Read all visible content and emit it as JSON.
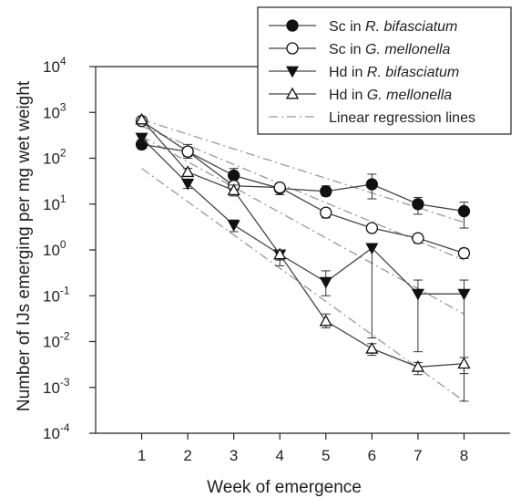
{
  "chart_data": {
    "type": "line",
    "xlabel": "Week of emergence",
    "ylabel": "Number of IJs emerging per mg wet weight",
    "y_scale": "log",
    "ylim": [
      0.0001,
      10000
    ],
    "xlim": [
      0,
      9
    ],
    "x_ticks": [
      1,
      2,
      3,
      4,
      5,
      6,
      7,
      8
    ],
    "y_ticks": [
      {
        "exp": -4,
        "label_base": "10",
        "label_exp": "-4"
      },
      {
        "exp": -3,
        "label_base": "10",
        "label_exp": "-3"
      },
      {
        "exp": -2,
        "label_base": "10",
        "label_exp": "-2"
      },
      {
        "exp": -1,
        "label_base": "10",
        "label_exp": "-1"
      },
      {
        "exp": 0,
        "label_base": "10",
        "label_exp": "0"
      },
      {
        "exp": 1,
        "label_base": "10",
        "label_exp": "1"
      },
      {
        "exp": 2,
        "label_base": "10",
        "label_exp": "2"
      },
      {
        "exp": 3,
        "label_base": "10",
        "label_exp": "3"
      },
      {
        "exp": 4,
        "label_base": "10",
        "label_exp": "4"
      }
    ],
    "x": [
      1,
      2,
      3,
      4,
      5,
      6,
      7,
      8
    ],
    "series": [
      {
        "name_prefix": "Sc in ",
        "name_species": "R. bifasciatum",
        "marker": "circle-filled",
        "values": [
          200,
          140,
          42,
          22,
          19,
          27,
          10,
          7
        ],
        "err_low": [
          160,
          100,
          30,
          16,
          15,
          13,
          6,
          3
        ],
        "err_high": [
          250,
          200,
          60,
          28,
          25,
          45,
          14,
          11
        ],
        "regression": [
          [
            1,
            700
          ],
          [
            8,
            4
          ]
        ]
      },
      {
        "name_prefix": "Sc in ",
        "name_species": "G. mellonella",
        "marker": "circle-open",
        "values": [
          650,
          140,
          25,
          23,
          6.5,
          3,
          1.8,
          0.85
        ],
        "err_low": [
          550,
          110,
          20,
          18,
          5,
          2.5,
          1.4,
          0.65
        ],
        "err_high": [
          750,
          175,
          30,
          28,
          8,
          3.6,
          2.2,
          1.05
        ],
        "regression": [
          [
            1,
            500
          ],
          [
            8,
            0.6
          ]
        ]
      },
      {
        "name_prefix": "Hd in ",
        "name_species": "R. bifasciatum",
        "marker": "triangle-down-filled",
        "values": [
          280,
          28,
          3.5,
          0.8,
          0.2,
          1.1,
          0.11,
          0.11
        ],
        "err_low": [
          230,
          22,
          2.5,
          0.45,
          0.1,
          0.012,
          0.006,
          0.0005
        ],
        "err_high": [
          330,
          34,
          4.5,
          1.0,
          0.35,
          1.3,
          0.22,
          0.22
        ],
        "regression": [
          [
            1,
            300
          ],
          [
            8,
            0.04
          ]
        ]
      },
      {
        "name_prefix": "Hd in ",
        "name_species": "G. mellonella",
        "marker": "triangle-up-open",
        "values": [
          700,
          50,
          20,
          0.8,
          0.028,
          0.007,
          0.0028,
          0.0033
        ],
        "err_low": [
          600,
          40,
          15,
          0.6,
          0.02,
          0.005,
          0.0019,
          0.002
        ],
        "err_high": [
          800,
          60,
          26,
          1.0,
          0.04,
          0.009,
          0.0035,
          0.0045
        ],
        "regression": [
          [
            1,
            60
          ],
          [
            8,
            0.0005
          ]
        ]
      }
    ],
    "legend": {
      "placement": "top-right",
      "regression_label": "Linear regression lines"
    },
    "colors": {
      "line": "#444444",
      "regression": "#999999",
      "axis": "#222222"
    }
  }
}
